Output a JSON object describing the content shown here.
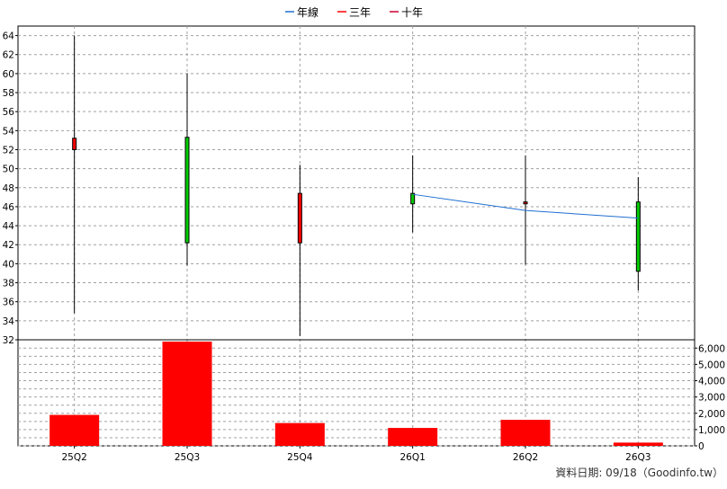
{
  "chart_data": {
    "type": "candlestick",
    "legend": [
      {
        "label": "年線",
        "color": "#1f6fd1"
      },
      {
        "label": "三年",
        "color": "#ff0000"
      },
      {
        "label": "十年",
        "color": "#cc0033"
      }
    ],
    "legend_position": "top-center",
    "categories": [
      "25Q2",
      "25Q3",
      "25Q4",
      "26Q1",
      "26Q2",
      "26Q3"
    ],
    "price_axis": {
      "ylim": [
        32,
        65
      ],
      "ticks": [
        32,
        34,
        36,
        38,
        40,
        42,
        44,
        46,
        48,
        50,
        52,
        54,
        56,
        58,
        60,
        62,
        64
      ],
      "side": "left"
    },
    "candles": [
      {
        "category": "25Q2",
        "open": 52.0,
        "high": 64.0,
        "low": 34.8,
        "close": 53.2,
        "color": "#ff0000"
      },
      {
        "category": "25Q3",
        "open": 53.3,
        "high": 60.0,
        "low": 39.8,
        "close": 42.2,
        "color": "#00cc00"
      },
      {
        "category": "25Q4",
        "open": 42.2,
        "high": 50.4,
        "low": 32.4,
        "close": 47.4,
        "color": "#ff0000"
      },
      {
        "category": "26Q1",
        "open": 47.4,
        "high": 51.4,
        "low": 43.3,
        "close": 46.3,
        "color": "#00cc00"
      },
      {
        "category": "26Q2",
        "open": 46.3,
        "high": 51.4,
        "low": 39.9,
        "close": 46.5,
        "color": "#ff0000"
      },
      {
        "category": "26Q3",
        "open": 46.5,
        "high": 49.1,
        "low": 37.2,
        "close": 39.2,
        "color": "#00cc00"
      }
    ],
    "series": [
      {
        "name": "年線",
        "color": "#1f6fd1",
        "points": [
          {
            "category": "26Q1",
            "value": 47.3
          },
          {
            "category": "26Q2",
            "value": 45.6
          },
          {
            "category": "26Q3",
            "value": 44.8
          }
        ]
      }
    ],
    "volume": {
      "values": [
        1900,
        6400,
        1400,
        1100,
        1600,
        200
      ],
      "color": "#ff0000",
      "ylim": [
        0,
        6400
      ],
      "ticks": [
        0,
        1000,
        2000,
        3000,
        4000,
        5000,
        6000
      ],
      "tick_labels": [
        "0",
        "1,000",
        "2,000",
        "3,000",
        "4,000",
        "5,000",
        "6,000"
      ],
      "side": "right"
    },
    "grid": true,
    "footer": "資料日期: 09/18（Goodinfo.tw）"
  }
}
